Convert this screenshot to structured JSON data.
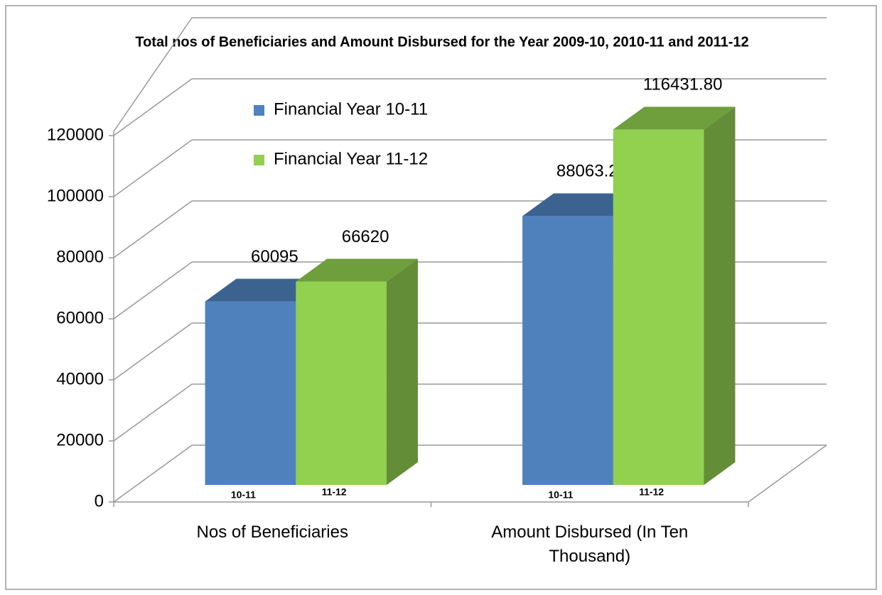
{
  "chart_data": {
    "type": "bar3d",
    "title": "Total nos of Beneficiaries and Amount Disbursed  for the Year 2009-10, 2010-11 and 2011-12",
    "categories": [
      "Nos of Beneficiaries",
      "Amount Disbursed (In Ten Thousand)"
    ],
    "series": [
      {
        "name": "Financial Year 10-11",
        "bar_label": "10-11",
        "color": "#4f81bd",
        "values": [
          60095,
          88063.2
        ],
        "value_labels": [
          "60095",
          "88063.20"
        ]
      },
      {
        "name": "Financial Year 11-12",
        "bar_label": "11-12",
        "color": "#92d050",
        "values": [
          66620,
          116431.8
        ],
        "value_labels": [
          "66620",
          "116431.80"
        ]
      }
    ],
    "ylim": [
      0,
      140000
    ],
    "yticks": [
      0,
      20000,
      40000,
      60000,
      80000,
      100000,
      120000
    ],
    "grid": true
  }
}
